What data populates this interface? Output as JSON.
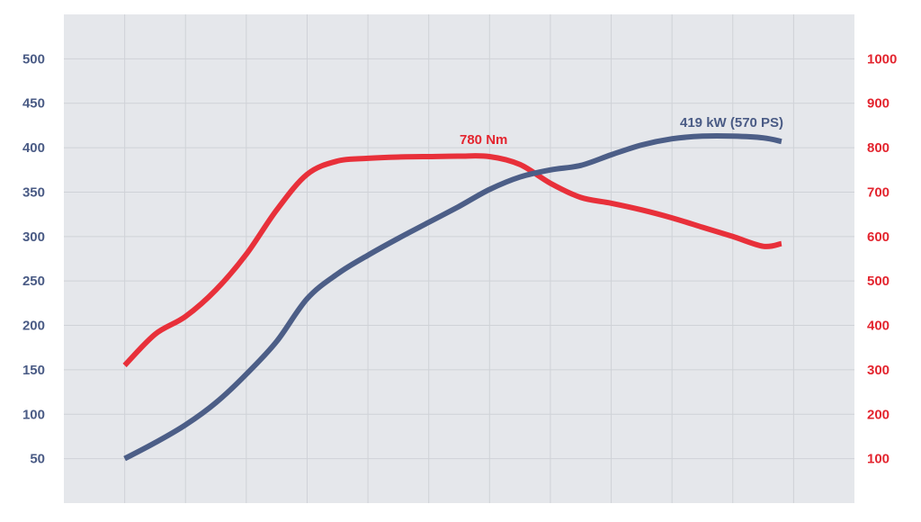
{
  "chart_data": {
    "type": "line",
    "title": "",
    "xlabel": "",
    "grid": true,
    "colors": {
      "power": "#4c5e87",
      "torque": "#e8303a",
      "plot_bg": "#e5e7eb",
      "grid": "#cfd2d7"
    },
    "x": [
      1000,
      1250,
      1500,
      1750,
      2000,
      2250,
      2500,
      2750,
      3000,
      3250,
      3500,
      3750,
      4000,
      4250,
      4500,
      4750,
      5000,
      5250,
      5500,
      5750,
      6000,
      6250,
      6400
    ],
    "y_left": {
      "range": [
        0,
        550
      ],
      "ticks": [
        50,
        100,
        150,
        200,
        250,
        300,
        350,
        400,
        450,
        500
      ]
    },
    "y_right": {
      "range": [
        0,
        1100
      ],
      "ticks": [
        100,
        200,
        300,
        400,
        500,
        600,
        700,
        800,
        900,
        1000
      ]
    },
    "series": [
      {
        "axis": "left",
        "values": [
          50,
          68,
          88,
          113,
          145,
          182,
          230,
          258,
          279,
          298,
          316,
          334,
          353,
          367,
          375,
          380,
          392,
          403,
          410,
          413,
          413,
          411,
          407
        ],
        "annotation": "419 kW (570 PS)"
      },
      {
        "axis": "right",
        "values": [
          310,
          380,
          420,
          480,
          560,
          660,
          740,
          770,
          776,
          779,
          780,
          781,
          780,
          762,
          720,
          688,
          675,
          660,
          642,
          621,
          600,
          578,
          584
        ],
        "annotation": "780 Nm"
      }
    ]
  }
}
